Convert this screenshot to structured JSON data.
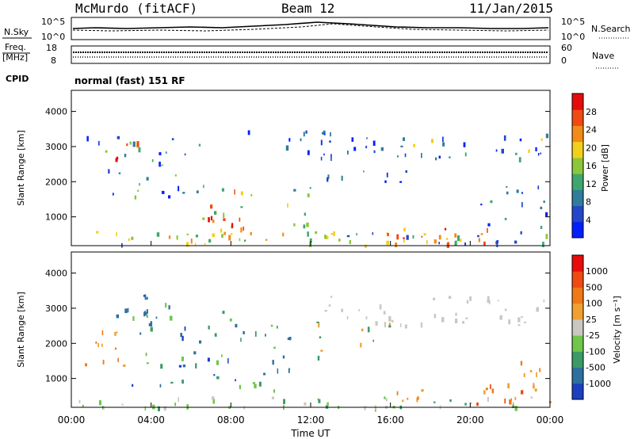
{
  "header": {
    "station": "McMurdo (fitACF)",
    "beam": "Beam 12",
    "date": "11/Jan/2015"
  },
  "panels": {
    "noise_left_label": "N.Sky",
    "noise_right_label": "N.Search",
    "noise_left_ticks": [
      "10^5",
      "10^0"
    ],
    "noise_right_ticks": [
      "10^5",
      "10^0"
    ],
    "freq_label": "Freq.",
    "freq_unit": "[MHz]",
    "freq_ticks": [
      "18",
      "8"
    ],
    "nave_label": "Nave",
    "nave_ticks": [
      "60",
      "0"
    ],
    "cpid_label": "CPID",
    "cpid_value": "normal (fast) 151 RF"
  },
  "chart_data": [
    {
      "type": "heatmap",
      "title": "",
      "xlabel": "",
      "ylabel": "Slant Range [km]",
      "x_ticks": [
        "00:00",
        "04:00",
        "08:00",
        "12:00",
        "16:00",
        "20:00",
        "00:00"
      ],
      "xlim_hours": [
        0,
        24
      ],
      "y_ticks": [
        1000,
        2000,
        3000,
        4000
      ],
      "ylim_km": [
        180,
        4600
      ],
      "colorbar": {
        "label": "Power [dB]",
        "range": [
          0,
          32
        ],
        "ticks": [
          4,
          8,
          12,
          16,
          20,
          24,
          28
        ],
        "colors": [
          "#0020ff",
          "#2446c8",
          "#2f7d9b",
          "#3fa66d",
          "#8cc63a",
          "#f2cf1a",
          "#f28b17",
          "#f04a12",
          "#e60b0b"
        ]
      }
    },
    {
      "type": "heatmap",
      "title": "",
      "xlabel": "Time UT",
      "ylabel": "Slant Range [km]",
      "x_ticks": [
        "00:00",
        "04:00",
        "08:00",
        "12:00",
        "16:00",
        "20:00",
        "00:00"
      ],
      "xlim_hours": [
        0,
        24
      ],
      "y_ticks": [
        1000,
        2000,
        3000,
        4000
      ],
      "ylim_km": [
        180,
        4600
      ],
      "colorbar": {
        "label": "Velocity [m s⁻¹]",
        "ticks": [
          "1000",
          "500",
          "100",
          "25",
          "-25",
          "-100",
          "-500",
          "-1000"
        ],
        "colors": [
          "#1c3fc0",
          "#2d6fa0",
          "#3c9a66",
          "#6ec64a",
          "#c8c8c0",
          "#f0a030",
          "#f07818",
          "#ee4a12",
          "#e80c0c"
        ]
      }
    }
  ]
}
